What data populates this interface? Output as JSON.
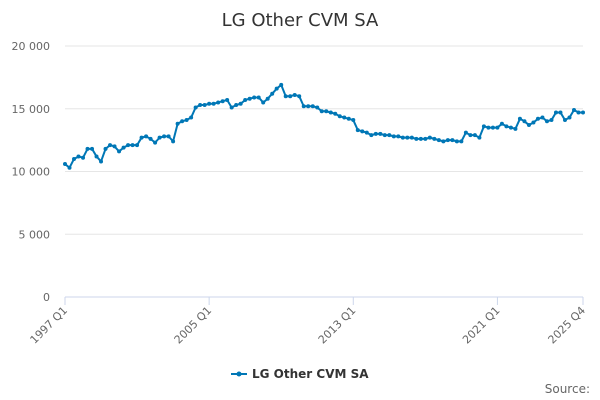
{
  "chart_data": {
    "type": "line",
    "title": "LG Other CVM SA",
    "xlabel": "",
    "ylabel": "",
    "ylim": [
      0,
      20000
    ],
    "y_ticks": [
      "0",
      "5 000",
      "10 000",
      "15 000",
      "20 000"
    ],
    "y_tick_values": [
      0,
      5000,
      10000,
      15000,
      20000
    ],
    "x_tick_labels": [
      "1997 Q1",
      "2005 Q1",
      "2013 Q1",
      "2021 Q1",
      "2025 Q4"
    ],
    "x_start": "1997 Q1",
    "x_end": "2025 Q4",
    "grid": true,
    "legend_position": "bottom",
    "series": [
      {
        "name": "LG Other CVM SA",
        "color": "#0077b6",
        "values": [
          10600,
          10300,
          11000,
          11200,
          11100,
          11800,
          11800,
          11200,
          10800,
          11800,
          12100,
          12000,
          11600,
          11900,
          12100,
          12100,
          12100,
          12700,
          12800,
          12600,
          12300,
          12700,
          12800,
          12800,
          12400,
          13800,
          14000,
          14100,
          14300,
          15100,
          15300,
          15300,
          15400,
          15400,
          15500,
          15600,
          15700,
          15100,
          15300,
          15400,
          15700,
          15800,
          15900,
          15900,
          15500,
          15800,
          16200,
          16600,
          16900,
          16000,
          16000,
          16100,
          16000,
          15200,
          15200,
          15200,
          15100,
          14800,
          14800,
          14700,
          14600,
          14400,
          14300,
          14200,
          14100,
          13300,
          13200,
          13100,
          12900,
          13000,
          13000,
          12900,
          12900,
          12800,
          12800,
          12700,
          12700,
          12700,
          12600,
          12600,
          12600,
          12700,
          12600,
          12500,
          12400,
          12500,
          12500,
          12400,
          12400,
          13100,
          12900,
          12900,
          12700,
          13600,
          13500,
          13500,
          13500,
          13800,
          13600,
          13500,
          13400,
          14200,
          14000,
          13700,
          13900,
          14200,
          14300,
          14000,
          14100,
          14700,
          14700,
          14100,
          14300,
          14900,
          14700,
          14700
        ]
      }
    ]
  },
  "legend": {
    "label": "LG Other CVM SA"
  },
  "footer": {
    "source_label": "Source:"
  }
}
